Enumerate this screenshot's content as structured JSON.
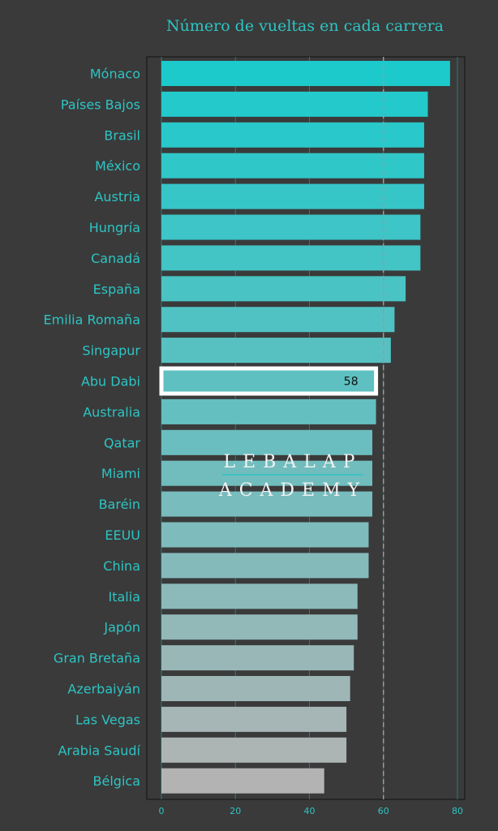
{
  "chart_data": {
    "type": "bar",
    "orientation": "horizontal",
    "title": "Número de vueltas en cada carrera",
    "categories": [
      "Mónaco",
      "Países Bajos",
      "Brasil",
      "México",
      "Austria",
      "Hungría",
      "Canadá",
      "España",
      "Emilia Romaña",
      "Singapur",
      "Abu Dabi",
      "Australia",
      "Qatar",
      "Miami",
      "Baréin",
      "EEUU",
      "China",
      "Italia",
      "Japón",
      "Gran Bretaña",
      "Azerbaiyán",
      "Las Vegas",
      "Arabia Saudí",
      "Bélgica"
    ],
    "values": [
      78,
      72,
      71,
      71,
      71,
      70,
      70,
      66,
      63,
      62,
      58,
      58,
      57,
      57,
      57,
      56,
      56,
      53,
      53,
      52,
      51,
      50,
      50,
      44
    ],
    "highlight": {
      "category": "Abu Dabi",
      "label": "58"
    },
    "reference_line": 60,
    "xlim": [
      0,
      80
    ],
    "xticks": [
      0,
      20,
      40,
      60,
      80
    ],
    "grid": "vertical",
    "xlabel": "",
    "ylabel": ""
  },
  "watermark": {
    "line1": "LEBALAP",
    "line2": "ACADEMY"
  },
  "colors": {
    "background": "#3a3a3a",
    "text": "#2ec4c4",
    "bar_top": "#1ccacc",
    "bar_bottom": "#b3b3b3",
    "highlight_border": "#ffffff",
    "reference_line": "#9a9a9a"
  }
}
